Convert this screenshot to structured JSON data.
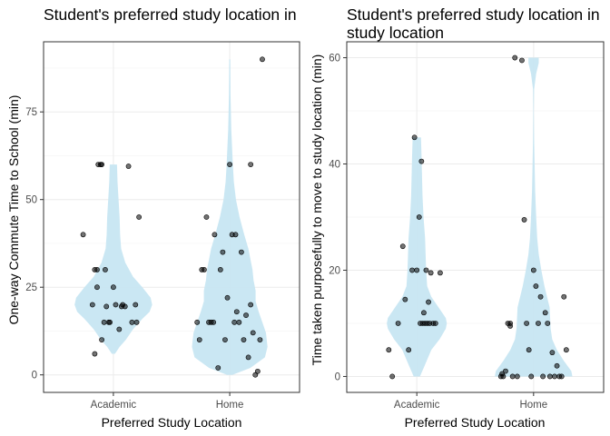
{
  "chart_data": [
    {
      "type": "scatter",
      "title": "Student's preferred study location in",
      "xlabel": "Preferred Study Location",
      "ylabel": "One-way Commute Time to School (min)",
      "categories": [
        "Academic",
        "Home"
      ],
      "ylim": [
        -5,
        95
      ],
      "yticks": [
        0,
        25,
        50,
        75
      ],
      "grid": true,
      "violin_color": "#c7e6f2",
      "point_color": "#000000",
      "violins": [
        {
          "category": "Academic",
          "profile": [
            [
              6,
              0.03
            ],
            [
              8,
              0.12
            ],
            [
              10,
              0.24
            ],
            [
              13,
              0.38
            ],
            [
              16,
              0.56
            ],
            [
              18,
              0.7
            ],
            [
              20,
              0.75
            ],
            [
              22,
              0.72
            ],
            [
              25,
              0.56
            ],
            [
              28,
              0.38
            ],
            [
              32,
              0.23
            ],
            [
              36,
              0.15
            ],
            [
              40,
              0.13
            ],
            [
              45,
              0.12
            ],
            [
              50,
              0.1
            ],
            [
              55,
              0.08
            ],
            [
              60,
              0.07
            ]
          ]
        },
        {
          "category": "Home",
          "profile": [
            [
              0,
              0.05
            ],
            [
              2,
              0.4
            ],
            [
              5,
              0.68
            ],
            [
              8,
              0.73
            ],
            [
              12,
              0.7
            ],
            [
              15,
              0.63
            ],
            [
              18,
              0.56
            ],
            [
              21,
              0.5
            ],
            [
              24,
              0.5
            ],
            [
              27,
              0.46
            ],
            [
              30,
              0.44
            ],
            [
              33,
              0.4
            ],
            [
              36,
              0.36
            ],
            [
              40,
              0.28
            ],
            [
              45,
              0.19
            ],
            [
              50,
              0.12
            ],
            [
              55,
              0.08
            ],
            [
              60,
              0.06
            ],
            [
              70,
              0.03
            ],
            [
              80,
              0.015
            ],
            [
              90,
              0.01
            ]
          ]
        }
      ],
      "series": [
        {
          "category": "Academic",
          "x": [
            0.74,
            0.82,
            0.84,
            0.84,
            0.86,
            0.86,
            0.87,
            0.89,
            0.9,
            0.9,
            0.92,
            0.93,
            0.94,
            0.96,
            0.97,
            1.0,
            1.02,
            1.05,
            1.07,
            1.08,
            1.1,
            1.13,
            1.16,
            1.19,
            1.2,
            1.22
          ],
          "y": [
            40,
            20,
            6,
            30,
            30,
            25,
            60,
            60,
            60,
            10,
            15,
            30,
            19.5,
            15,
            15,
            25,
            20,
            13,
            19.5,
            20,
            19.5,
            59.5,
            15,
            20,
            15,
            45
          ]
        },
        {
          "category": "Home",
          "x": [
            1.72,
            1.74,
            1.76,
            1.78,
            1.8,
            1.82,
            1.84,
            1.86,
            1.87,
            1.9,
            1.92,
            1.94,
            1.96,
            1.98,
            2.0,
            2.02,
            2.04,
            2.05,
            2.06,
            2.08,
            2.1,
            2.12,
            2.14,
            2.16,
            2.18,
            2.18,
            2.2,
            2.22,
            2.24,
            2.26,
            2.28
          ],
          "y": [
            15,
            10,
            30,
            30,
            45,
            15,
            15,
            15,
            40,
            2,
            30,
            35,
            10,
            22,
            60,
            40,
            15,
            40,
            18,
            15,
            35,
            10,
            17,
            5,
            20,
            60,
            12,
            0,
            1,
            10,
            90
          ]
        }
      ]
    },
    {
      "type": "scatter",
      "title": "Student's preferred study location in\nstudy location",
      "xlabel": "Preferred Study Location",
      "ylabel": "Time taken purposefully to move to study location (min)",
      "categories": [
        "Academic",
        "Home"
      ],
      "ylim": [
        -3,
        63
      ],
      "yticks": [
        0,
        20,
        40,
        60
      ],
      "grid": true,
      "violin_color": "#c7e6f2",
      "point_color": "#000000",
      "violins": [
        {
          "category": "Academic",
          "profile": [
            [
              0,
              0.06
            ],
            [
              2,
              0.15
            ],
            [
              5,
              0.28
            ],
            [
              7,
              0.44
            ],
            [
              9,
              0.56
            ],
            [
              10,
              0.58
            ],
            [
              11,
              0.56
            ],
            [
              13,
              0.42
            ],
            [
              15,
              0.28
            ],
            [
              17,
              0.2
            ],
            [
              20,
              0.18
            ],
            [
              23,
              0.17
            ],
            [
              26,
              0.16
            ],
            [
              30,
              0.13
            ],
            [
              34,
              0.11
            ],
            [
              38,
              0.1
            ],
            [
              42,
              0.09
            ],
            [
              45,
              0.08
            ]
          ]
        },
        {
          "category": "Home",
          "profile": [
            [
              0,
              0.75
            ],
            [
              1,
              0.73
            ],
            [
              3,
              0.58
            ],
            [
              5,
              0.45
            ],
            [
              7,
              0.36
            ],
            [
              9,
              0.33
            ],
            [
              11,
              0.32
            ],
            [
              13,
              0.31
            ],
            [
              15,
              0.26
            ],
            [
              17,
              0.21
            ],
            [
              20,
              0.15
            ],
            [
              23,
              0.1
            ],
            [
              26,
              0.07
            ],
            [
              30,
              0.05
            ],
            [
              35,
              0.03
            ],
            [
              40,
              0.02
            ],
            [
              45,
              0.01
            ],
            [
              50,
              0.005
            ],
            [
              54,
              0.01
            ],
            [
              57,
              0.05
            ],
            [
              59,
              0.1
            ],
            [
              60,
              0.1
            ]
          ]
        }
      ],
      "series": [
        {
          "category": "Academic",
          "x": [
            0.76,
            0.79,
            0.84,
            0.88,
            0.9,
            0.93,
            0.96,
            0.98,
            1.0,
            1.02,
            1.03,
            1.04,
            1.05,
            1.06,
            1.07,
            1.08,
            1.09,
            1.1,
            1.11,
            1.12,
            1.14,
            1.16,
            1.2
          ],
          "y": [
            5,
            0,
            10,
            24.5,
            14.5,
            5,
            20,
            45,
            20,
            30,
            10,
            40.5,
            10,
            12,
            10,
            20,
            10,
            14,
            10,
            19.5,
            10,
            10,
            19.5
          ]
        },
        {
          "category": "Home",
          "x": [
            1.72,
            1.73,
            1.74,
            1.76,
            1.78,
            1.8,
            1.8,
            1.82,
            1.84,
            1.86,
            1.9,
            1.92,
            1.94,
            1.96,
            1.98,
            2.0,
            2.02,
            2.04,
            2.06,
            2.08,
            2.1,
            2.12,
            2.14,
            2.16,
            2.18,
            2.2,
            2.22,
            2.24,
            2.26,
            2.28
          ],
          "y": [
            0,
            0.5,
            0,
            1,
            10,
            10,
            9.5,
            0,
            60,
            0,
            59.5,
            29.5,
            10,
            5,
            0,
            20,
            17,
            10,
            15,
            0,
            12,
            10,
            0,
            4.5,
            0,
            2,
            0,
            0,
            15,
            5
          ]
        }
      ]
    }
  ]
}
